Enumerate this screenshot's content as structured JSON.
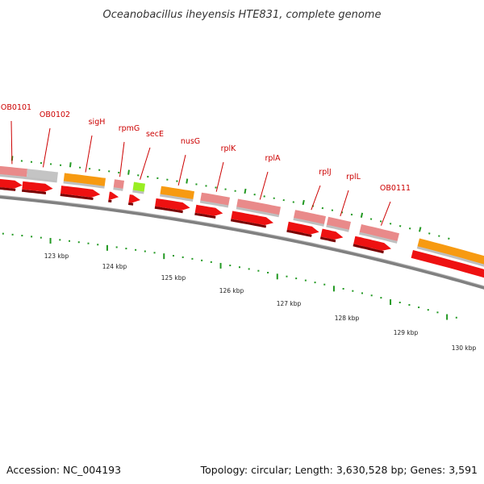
{
  "title": "Oceanobacillus iheyensis HTE831, complete genome",
  "footer": {
    "accession": "Accession: NC_004193",
    "topology": "Topology: circular; Length: 3,630,528 bp; Genes: 3,591"
  },
  "colors": {
    "gene_pink": "#e98a8a",
    "gene_gray": "#c4c4c4",
    "gene_orange": "#f79a11",
    "gene_green": "#99ee22",
    "cds_red": "#ee1111",
    "label_red": "#cc0000",
    "tick_green": "#229922",
    "backbone": "#808080"
  },
  "genes": [
    {
      "name": "OB0101",
      "color": "gene_pink"
    },
    {
      "name": "OB0102",
      "color": "gene_gray"
    },
    {
      "name": "sigH",
      "color": "gene_orange"
    },
    {
      "name": "rpmG",
      "color": "gene_pink"
    },
    {
      "name": "secE",
      "color": "gene_green"
    },
    {
      "name": "nusG",
      "color": "gene_orange"
    },
    {
      "name": "rplK",
      "color": "gene_pink"
    },
    {
      "name": "rplA",
      "color": "gene_pink"
    },
    {
      "name": "rplJ",
      "color": "gene_pink"
    },
    {
      "name": "rplL",
      "color": "gene_pink"
    },
    {
      "name": "OB0111",
      "color": "gene_pink"
    }
  ],
  "unlabeled_genes": [
    {
      "color": "gene_orange"
    }
  ],
  "kbp_labels": [
    "123 kbp",
    "124 kbp",
    "125 kbp",
    "126 kbp",
    "127 kbp",
    "128 kbp",
    "129 kbp",
    "130 kbp"
  ]
}
